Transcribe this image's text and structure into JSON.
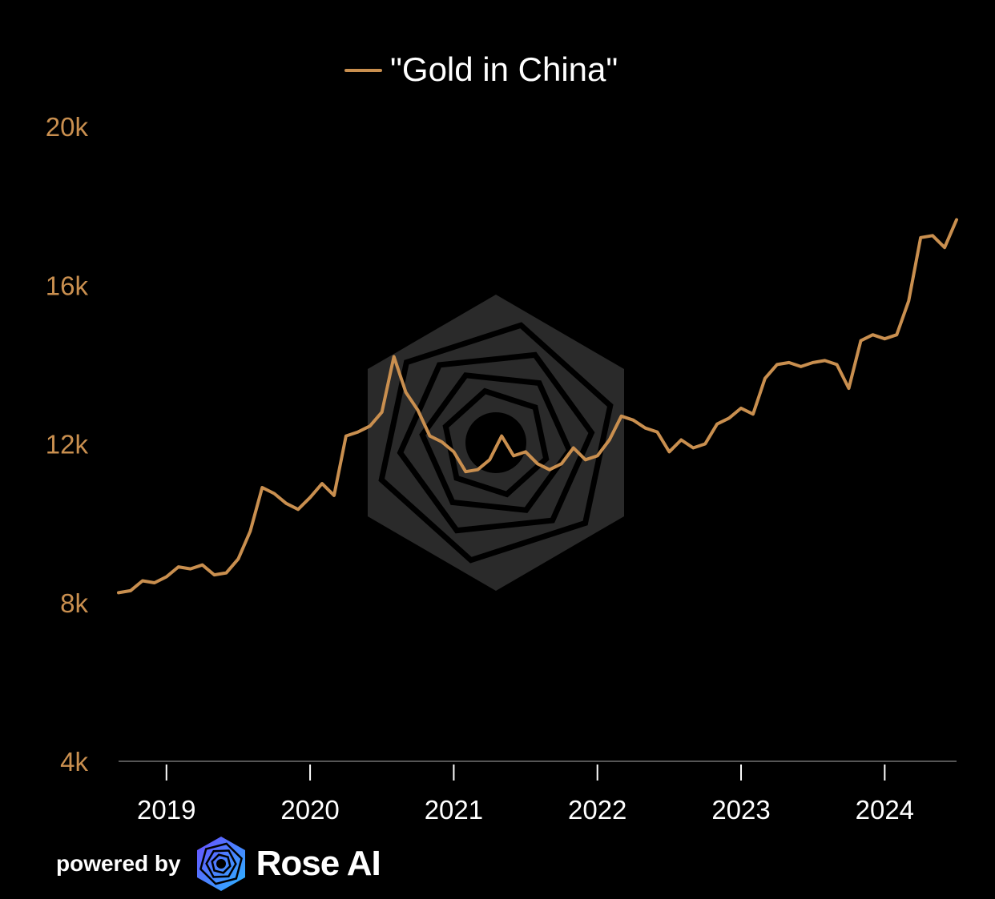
{
  "legend": {
    "label": "\"Gold in China\""
  },
  "footer": {
    "powered_by": "powered by",
    "brand": "Rose AI",
    "logo_icon": "rose-ai-logo-icon"
  },
  "colors": {
    "background": "#000000",
    "series": "#c98f4f",
    "axis_text": "#c98f4f",
    "x_text": "#ffffff",
    "watermark": "#2a2a2a"
  },
  "chart_data": {
    "type": "line",
    "title": "",
    "xlabel": "",
    "ylabel": "",
    "ylim": [
      4000,
      20000
    ],
    "xlim": [
      "2018-09",
      "2024-07"
    ],
    "y_ticks": [
      4000,
      8000,
      12000,
      16000,
      20000
    ],
    "y_tick_labels": [
      "4k",
      "8k",
      "12k",
      "16k",
      "20k"
    ],
    "x_ticks": [
      "2019-01",
      "2020-01",
      "2021-01",
      "2022-01",
      "2023-01",
      "2024-01"
    ],
    "x_tick_labels": [
      "2019",
      "2020",
      "2021",
      "2022",
      "2023",
      "2024"
    ],
    "grid": false,
    "legend_position": "top-center",
    "series": [
      {
        "name": "\"Gold in China\"",
        "color": "#c98f4f",
        "points": [
          [
            "2018-09",
            8250
          ],
          [
            "2018-10",
            8300
          ],
          [
            "2018-11",
            8550
          ],
          [
            "2018-12",
            8500
          ],
          [
            "2019-01",
            8650
          ],
          [
            "2019-02",
            8900
          ],
          [
            "2019-03",
            8850
          ],
          [
            "2019-04",
            8950
          ],
          [
            "2019-05",
            8700
          ],
          [
            "2019-06",
            8750
          ],
          [
            "2019-07",
            9100
          ],
          [
            "2019-08",
            9800
          ],
          [
            "2019-09",
            10900
          ],
          [
            "2019-10",
            10750
          ],
          [
            "2019-11",
            10500
          ],
          [
            "2019-12",
            10350
          ],
          [
            "2020-01",
            10650
          ],
          [
            "2020-02",
            11000
          ],
          [
            "2020-03",
            10700
          ],
          [
            "2020-04",
            12200
          ],
          [
            "2020-05",
            12300
          ],
          [
            "2020-06",
            12450
          ],
          [
            "2020-07",
            12800
          ],
          [
            "2020-08",
            14200
          ],
          [
            "2020-09",
            13300
          ],
          [
            "2020-10",
            12850
          ],
          [
            "2020-11",
            12200
          ],
          [
            "2020-12",
            12050
          ],
          [
            "2021-01",
            11800
          ],
          [
            "2021-02",
            11300
          ],
          [
            "2021-03",
            11350
          ],
          [
            "2021-04",
            11600
          ],
          [
            "2021-05",
            12200
          ],
          [
            "2021-06",
            11700
          ],
          [
            "2021-07",
            11800
          ],
          [
            "2021-08",
            11500
          ],
          [
            "2021-09",
            11350
          ],
          [
            "2021-10",
            11500
          ],
          [
            "2021-11",
            11900
          ],
          [
            "2021-12",
            11600
          ],
          [
            "2022-01",
            11700
          ],
          [
            "2022-02",
            12100
          ],
          [
            "2022-03",
            12700
          ],
          [
            "2022-04",
            12600
          ],
          [
            "2022-05",
            12400
          ],
          [
            "2022-06",
            12300
          ],
          [
            "2022-07",
            11800
          ],
          [
            "2022-08",
            12100
          ],
          [
            "2022-09",
            11900
          ],
          [
            "2022-10",
            12000
          ],
          [
            "2022-11",
            12500
          ],
          [
            "2022-12",
            12650
          ],
          [
            "2023-01",
            12900
          ],
          [
            "2023-02",
            12750
          ],
          [
            "2023-03",
            13650
          ],
          [
            "2023-04",
            14000
          ],
          [
            "2023-05",
            14050
          ],
          [
            "2023-06",
            13950
          ],
          [
            "2023-07",
            14050
          ],
          [
            "2023-08",
            14100
          ],
          [
            "2023-09",
            14000
          ],
          [
            "2023-10",
            13400
          ],
          [
            "2023-11",
            14600
          ],
          [
            "2023-12",
            14750
          ],
          [
            "2024-01",
            14650
          ],
          [
            "2024-02",
            14750
          ],
          [
            "2024-03",
            15600
          ],
          [
            "2024-04",
            17200
          ],
          [
            "2024-05",
            17250
          ],
          [
            "2024-06",
            16950
          ],
          [
            "2024-07",
            17650
          ]
        ]
      }
    ]
  }
}
